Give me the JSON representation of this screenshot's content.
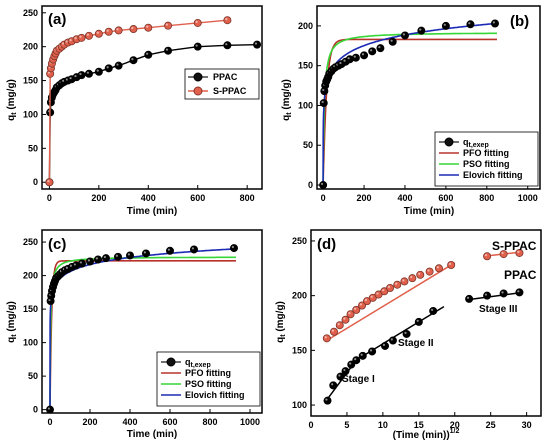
{
  "chart_data": [
    {
      "type": "scatter",
      "panel": "(a)",
      "xlabel": "Time (min)",
      "ylabel": "qt (mg/g)",
      "xlim": [
        -30,
        860
      ],
      "ylim": [
        -10,
        260
      ],
      "xticks": [
        0,
        200,
        400,
        600,
        800
      ],
      "yticks": [
        0,
        50,
        100,
        150,
        200,
        250
      ],
      "legend_position": "right",
      "series": [
        {
          "name": "PPAC",
          "color": "#000000",
          "x": [
            0,
            3,
            6,
            10,
            15,
            20,
            25,
            30,
            40,
            50,
            60,
            75,
            90,
            110,
            130,
            160,
            200,
            240,
            280,
            340,
            400,
            480,
            600,
            720,
            840
          ],
          "y": [
            0,
            103,
            118,
            125,
            130,
            133,
            136,
            140,
            143,
            146,
            148,
            150,
            152,
            155,
            158,
            160,
            163,
            168,
            172,
            180,
            188,
            194,
            200,
            202,
            203
          ]
        },
        {
          "name": "S-PPAC",
          "color": "#e0604c",
          "x": [
            0,
            3,
            6,
            10,
            15,
            20,
            25,
            30,
            40,
            50,
            60,
            75,
            90,
            110,
            130,
            160,
            200,
            240,
            280,
            340,
            400,
            480,
            600,
            720
          ],
          "y": [
            0,
            160,
            168,
            175,
            181,
            186,
            190,
            194,
            197,
            200,
            203,
            206,
            208,
            211,
            213,
            216,
            219,
            222,
            224,
            226,
            228,
            231,
            235,
            239
          ]
        }
      ]
    },
    {
      "type": "scatter",
      "panel": "(b)",
      "xlabel": "Time (min)",
      "ylabel": "qt (mg/g)",
      "xlim": [
        -30,
        1060
      ],
      "ylim": [
        -5,
        225
      ],
      "xticks": [
        0,
        200,
        400,
        600,
        800,
        1000
      ],
      "yticks": [
        0,
        50,
        100,
        150,
        200
      ],
      "legend_position": "bottom-right",
      "experimental": {
        "name": "qt,exep",
        "color": "#000000",
        "x": [
          0,
          3,
          6,
          10,
          15,
          20,
          25,
          30,
          40,
          50,
          60,
          75,
          90,
          110,
          130,
          160,
          200,
          240,
          280,
          340,
          400,
          480,
          600,
          720,
          840
        ],
        "y": [
          0,
          103,
          118,
          125,
          130,
          133,
          136,
          140,
          143,
          146,
          148,
          150,
          152,
          155,
          158,
          160,
          163,
          168,
          172,
          180,
          188,
          194,
          200,
          202,
          203
        ]
      },
      "fits": [
        {
          "name": "PFO fitting",
          "color": "#b8322a",
          "model": "pfo",
          "qe": 183,
          "k": 0.06,
          "xmax": 850
        },
        {
          "name": "PSO fitting",
          "color": "#36d636",
          "model": "pso",
          "qe": 192,
          "k": 0.0009,
          "xmax": 850
        },
        {
          "name": "Elovich fitting",
          "color": "#1b2ab5",
          "model": "elovich",
          "a": 73,
          "b": 19.3,
          "xmax": 850
        }
      ]
    },
    {
      "type": "scatter",
      "panel": "(c)",
      "xlabel": "Time (min)",
      "ylabel": "qt (mg/g)",
      "xlim": [
        -40,
        1060
      ],
      "ylim": [
        -5,
        268
      ],
      "xticks": [
        0,
        200,
        400,
        600,
        800,
        1000
      ],
      "yticks": [
        0,
        50,
        100,
        150,
        200,
        250
      ],
      "legend_position": "bottom-right",
      "experimental": {
        "name": "qt,exep",
        "color": "#000000",
        "x": [
          0,
          3,
          6,
          10,
          15,
          20,
          25,
          30,
          40,
          50,
          60,
          75,
          90,
          110,
          130,
          160,
          200,
          240,
          280,
          340,
          400,
          480,
          600,
          720,
          920
        ],
        "y": [
          0,
          162,
          170,
          177,
          183,
          188,
          192,
          196,
          199,
          202,
          205,
          208,
          210,
          213,
          215,
          218,
          221,
          224,
          226,
          228,
          230,
          233,
          237,
          239,
          241
        ]
      },
      "fits": [
        {
          "name": "PFO fitting",
          "color": "#b8322a",
          "model": "pfo",
          "qe": 222,
          "k": 0.12,
          "xmax": 930
        },
        {
          "name": "PSO fitting",
          "color": "#36d636",
          "model": "pso",
          "qe": 228,
          "k": 0.0015,
          "xmax": 930
        },
        {
          "name": "Elovich fitting",
          "color": "#1b2ab5",
          "model": "elovich",
          "a": 136,
          "b": 15.2,
          "xmax": 930
        }
      ]
    },
    {
      "type": "scatter",
      "panel": "(d)",
      "xlabel": "(Time (min))1/2",
      "ylabel": "qt (mg/g)",
      "xlim": [
        0,
        32
      ],
      "ylim": [
        90,
        260
      ],
      "xticks": [
        0,
        5,
        10,
        15,
        20,
        25,
        30
      ],
      "yticks": [
        100,
        150,
        200,
        250
      ],
      "series": [
        {
          "name": "S-PPAC",
          "color": "#e0604c",
          "x": [
            2.2,
            3.2,
            4.0,
            4.8,
            5.5,
            6.3,
            7.1,
            7.8,
            8.6,
            9.4,
            10.2,
            11.0,
            12.0,
            13.0,
            14.1,
            15.2,
            16.5,
            17.8,
            19.5
          ],
          "y": [
            161,
            167,
            173,
            178,
            183,
            187,
            191,
            195,
            198,
            201,
            204,
            207,
            210,
            213,
            216,
            219,
            222,
            225,
            228
          ]
        },
        {
          "name": "S-PPAC stage III",
          "color": "#e0604c",
          "x": [
            24.5,
            26.8,
            29.0
          ],
          "y": [
            236,
            238,
            239
          ]
        },
        {
          "name": "PPAC",
          "color": "#000000",
          "x": [
            2.3,
            3.1,
            4.1,
            4.8,
            5.6,
            6.3,
            7.2,
            8.5,
            10.3,
            11.4,
            13.3,
            15.0,
            17.0
          ],
          "y": [
            104,
            118,
            126,
            131,
            137,
            141,
            145,
            149,
            154,
            159,
            165,
            176,
            186
          ]
        },
        {
          "name": "PPAC stage III",
          "color": "#000000",
          "x": [
            22.0,
            24.5,
            26.8,
            29.0
          ],
          "y": [
            197,
            200,
            202,
            203
          ]
        }
      ],
      "fit_segments": [
        {
          "color": "#e0604c",
          "x": [
            2.2,
            20.0
          ],
          "y": [
            159,
            230
          ]
        },
        {
          "color": "#e0604c",
          "x": [
            24.0,
            29.5
          ],
          "y": [
            236,
            240
          ]
        },
        {
          "color": "#000000",
          "x": [
            2.0,
            6.3
          ],
          "y": [
            103,
            141
          ]
        },
        {
          "color": "#000000",
          "x": [
            7.5,
            18.5
          ],
          "y": [
            146,
            190
          ]
        },
        {
          "color": "#000000",
          "x": [
            21.5,
            29.5
          ],
          "y": [
            196,
            203
          ]
        }
      ],
      "annotations": [
        "S-PPAC",
        "PPAC",
        "Stage I",
        "Stage II",
        "Stage III"
      ]
    }
  ]
}
